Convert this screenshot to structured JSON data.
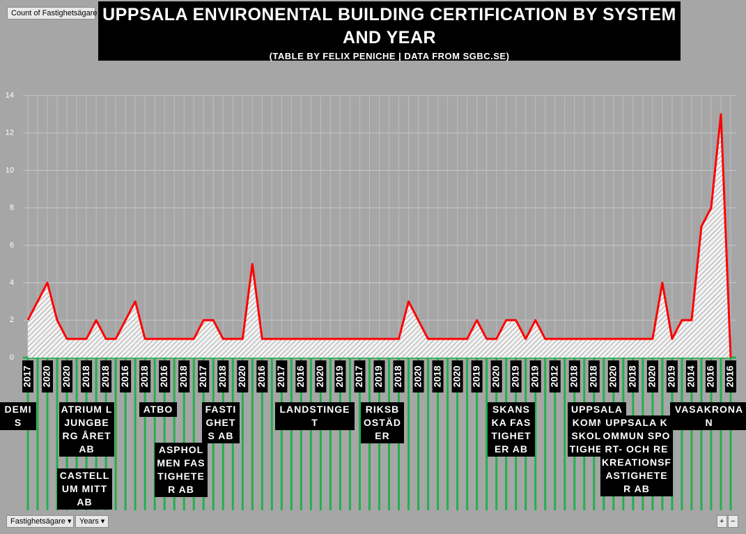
{
  "buttons": {
    "field": "Count of Fastighetsägare",
    "filter_owner": "Fastighetsägare",
    "filter_year": "Years",
    "expand": "+",
    "collapse": "−"
  },
  "chart_data": {
    "type": "area",
    "title": "UPPSALA ENVIRONENTAL BUILDING CERTIFICATION BY SYSTEM AND YEAR",
    "subtitle": "(TABLE BY FELIX PENICHE | DATA FROM SGBC.SE)",
    "categories": [
      "2017",
      null,
      "2020",
      null,
      "2020",
      null,
      "2018",
      null,
      "2018",
      null,
      "2016",
      null,
      "2018",
      null,
      "2016",
      null,
      "2018",
      null,
      "2017",
      null,
      "2018",
      null,
      "2020",
      null,
      "2016",
      null,
      "2017",
      null,
      "2016",
      null,
      "2020",
      null,
      "2019",
      null,
      "2017",
      null,
      "2019",
      null,
      "2018",
      null,
      "2020",
      null,
      "2018",
      null,
      "2020",
      null,
      "2019",
      null,
      "2020",
      null,
      "2019",
      null,
      "2019",
      null,
      "2012",
      null,
      "2018",
      null,
      "2018",
      null,
      "2020",
      null,
      "2018",
      null,
      "2020",
      null,
      "2019",
      null,
      "2014",
      null,
      "2016",
      null,
      "2016"
    ],
    "values": [
      2,
      3,
      4,
      2,
      1,
      1,
      1,
      2,
      1,
      1,
      2,
      3,
      1,
      1,
      1,
      1,
      1,
      1,
      2,
      2,
      1,
      1,
      1,
      5,
      1,
      1,
      1,
      1,
      1,
      1,
      1,
      1,
      1,
      1,
      1,
      1,
      1,
      1,
      1,
      3,
      2,
      1,
      1,
      1,
      1,
      1,
      2,
      1,
      1,
      2,
      2,
      1,
      2,
      1,
      1,
      1,
      1,
      1,
      1,
      1,
      1,
      1,
      1,
      1,
      1,
      4,
      1,
      2,
      2,
      7,
      8,
      13,
      0
    ],
    "owner_labels": [
      "DEMIS",
      "ATRIUM LJUNGBERG ÅRET AB",
      "CASTELLUM MITT AB",
      "ATBO",
      "ASPHOLMEN FASTIGHETER AB",
      "FASTIGHETS AB",
      "LANDSTINGET",
      "RIKSBOSTÄDER",
      "SKANSKA FASTIGHETER AB",
      "UPPSALA KOMMUN SKOLFASTIGHETER",
      "UPPSALA KOMMUN SPORT- OCH REKREATIONSFASTIGHETER AB",
      "VASAKRONAN"
    ],
    "color": "#ff0000",
    "ylim": [
      0,
      14
    ],
    "yticks": [
      0,
      2,
      4,
      6,
      8,
      10,
      12,
      14
    ],
    "grid": true
  }
}
